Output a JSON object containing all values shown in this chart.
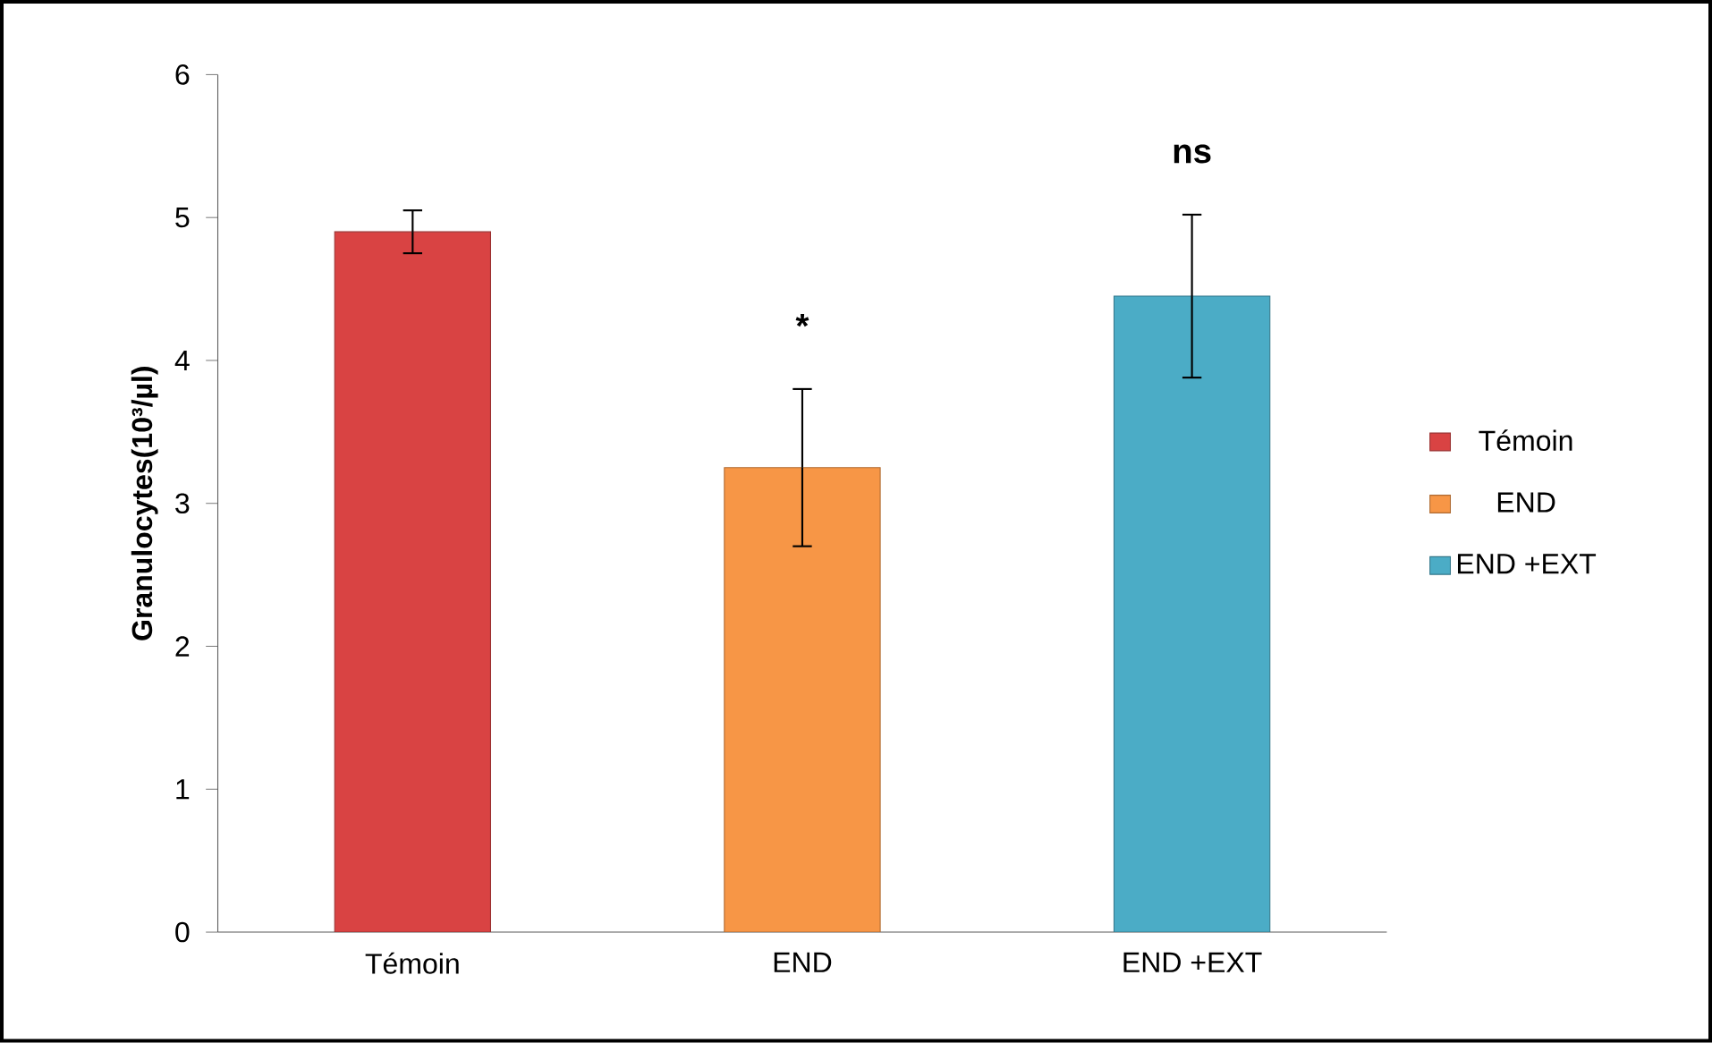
{
  "chart_data": {
    "type": "bar",
    "ylabel": "Granulocytes(10³/µl)",
    "categories": [
      "Témoin",
      "END",
      "END +EXT"
    ],
    "series": [
      {
        "name": "Témoin",
        "color": "#d94343",
        "values": [
          4.9,
          null,
          null
        ],
        "errors": [
          0.15,
          null,
          null
        ]
      },
      {
        "name": "END",
        "color": "#f79646",
        "values": [
          null,
          3.25,
          null
        ],
        "errors": [
          null,
          0.55,
          null
        ]
      },
      {
        "name": "END +EXT",
        "color": "#4bacc6",
        "values": [
          null,
          null,
          4.45
        ],
        "errors": [
          null,
          null,
          0.57
        ]
      }
    ],
    "ylim": [
      0,
      6
    ],
    "yticks": [
      0,
      1,
      2,
      3,
      4,
      5,
      6
    ],
    "grid": false,
    "legend": "right",
    "annotations": [
      "*",
      "ns"
    ]
  }
}
